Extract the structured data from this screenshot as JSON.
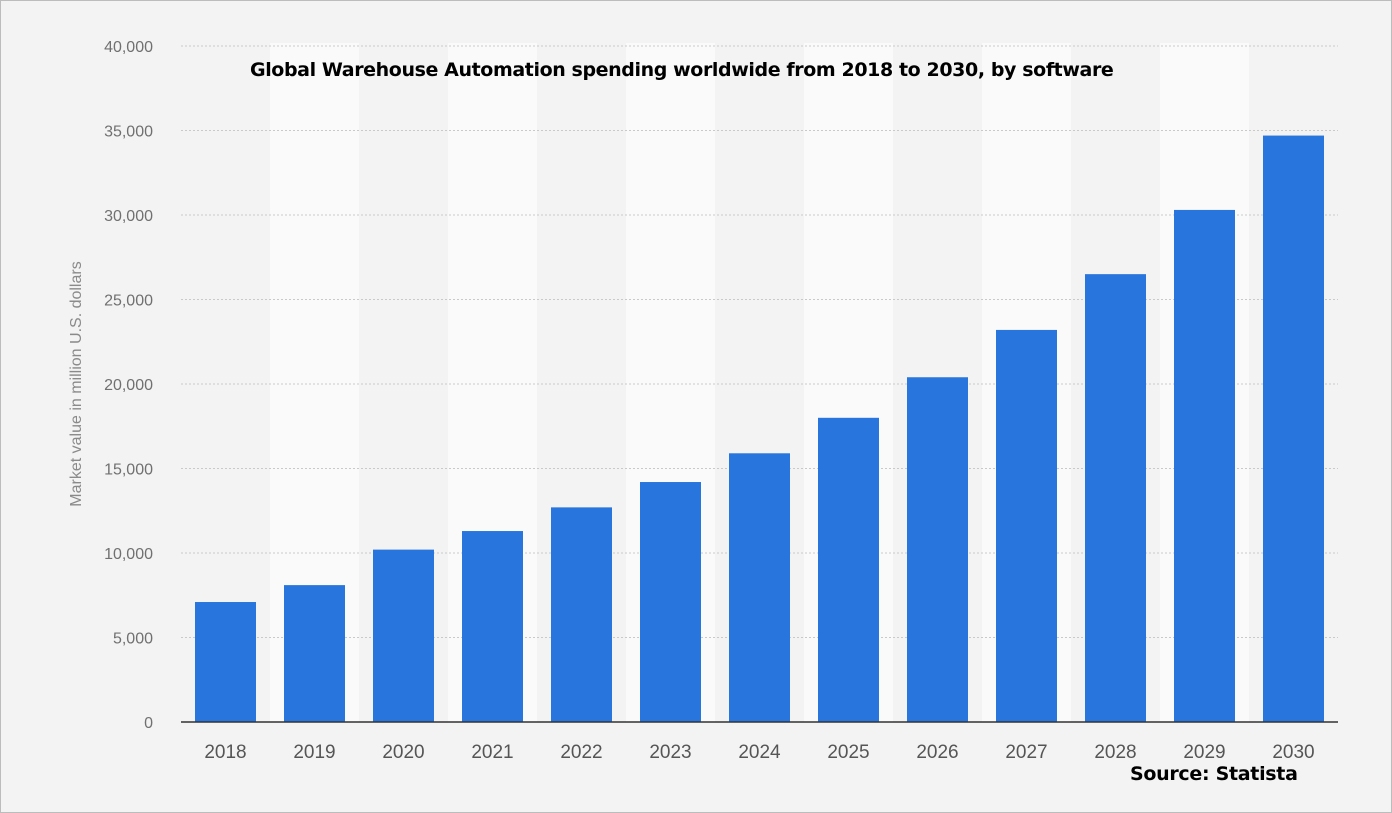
{
  "chart_data": {
    "type": "bar",
    "title": "Global Warehouse Automation spending worldwide from 2018 to 2030, by software",
    "xlabel": "",
    "ylabel": "Market value in million U.S. dollars",
    "categories": [
      "2018",
      "2019",
      "2020",
      "2021",
      "2022",
      "2023",
      "2024",
      "2025",
      "2026",
      "2027",
      "2028",
      "2029",
      "2030"
    ],
    "values": [
      7100,
      8100,
      10200,
      11300,
      12700,
      14200,
      15900,
      18000,
      20400,
      23200,
      26500,
      30300,
      34700
    ],
    "ylim": [
      0,
      40000
    ],
    "yticks": [
      0,
      5000,
      10000,
      15000,
      20000,
      25000,
      30000,
      35000,
      40000
    ],
    "ytick_labels": [
      "0",
      "5,000",
      "10,000",
      "15,000",
      "20,000",
      "25,000",
      "30,000",
      "35,000",
      "40,000"
    ],
    "grid": true,
    "bar_color": "#2876dd",
    "background_color": "#f3f3f3",
    "band_color": "#ffffff",
    "source": "Source: Statista"
  }
}
